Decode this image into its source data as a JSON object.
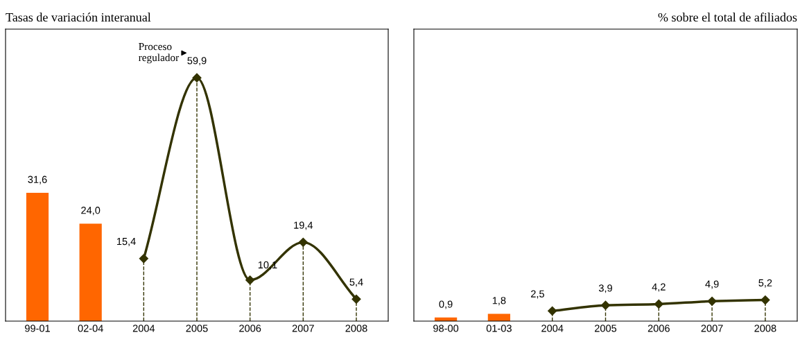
{
  "chart_data": [
    {
      "type": "bar",
      "title": "Tasas de variación interanual",
      "categories": [
        "99-01",
        "02-04",
        "2004",
        "2005",
        "2006",
        "2007",
        "2008"
      ],
      "series": [
        {
          "color": "#ff6600",
          "values": [
            31.6,
            24.0,
            null,
            null,
            null,
            null,
            null
          ],
          "value_labels": [
            "31,6",
            "24,0",
            null,
            null,
            null,
            null,
            null
          ]
        },
        {
          "type": "line",
          "color": "#333300",
          "marker": "diamond",
          "values": [
            null,
            null,
            15.4,
            59.9,
            10.1,
            19.4,
            5.4
          ],
          "value_labels": [
            null,
            null,
            "15,4",
            "59,9",
            "10,1",
            "19,4",
            "5,4"
          ]
        }
      ],
      "grid": false,
      "legend": false,
      "ref_lines": [
        {
          "axis": "x",
          "value": "2004",
          "color": "#333300",
          "line_style": "dashed"
        },
        {
          "axis": "x",
          "value": "2005",
          "color": "#333300",
          "line_style": "dashed"
        },
        {
          "axis": "x",
          "value": "2006",
          "color": "#333300",
          "line_style": "dashed"
        },
        {
          "axis": "x",
          "value": "2007",
          "color": "#333300",
          "line_style": "dashed"
        },
        {
          "axis": "x",
          "value": "2008",
          "color": "#333300",
          "line_style": "dashed"
        }
      ],
      "annotations": [
        {
          "text": "Proceso\nregulador",
          "x": "2005",
          "y": 59.9
        }
      ]
    },
    {
      "type": "bar",
      "title": "% sobre el total de afiliados",
      "categories": [
        "98-00",
        "01-03",
        "2004",
        "2005",
        "2006",
        "2007",
        "2008"
      ],
      "series": [
        {
          "color": "#ff6600",
          "values": [
            0.9,
            1.8,
            null,
            null,
            null,
            null,
            null
          ],
          "value_labels": [
            "0,9",
            "1,8",
            null,
            null,
            null,
            null,
            null
          ]
        },
        {
          "type": "line",
          "color": "#333300",
          "marker": "diamond",
          "values": [
            null,
            null,
            2.5,
            3.9,
            4.2,
            4.9,
            5.2
          ],
          "value_labels": [
            null,
            null,
            "2,5",
            "3,9",
            "4,2",
            "4,9",
            "5,2"
          ]
        }
      ],
      "grid": false,
      "legend": false,
      "ref_lines": [
        {
          "axis": "x",
          "value": "2004",
          "color": "#333300",
          "line_style": "dashed"
        },
        {
          "axis": "x",
          "value": "2005",
          "color": "#333300",
          "line_style": "dashed"
        },
        {
          "axis": "x",
          "value": "2006",
          "color": "#333300",
          "line_style": "dashed"
        },
        {
          "axis": "x",
          "value": "2007",
          "color": "#333300",
          "line_style": "dashed"
        },
        {
          "axis": "x",
          "value": "2008",
          "color": "#333300",
          "line_style": "dashed"
        }
      ]
    }
  ]
}
